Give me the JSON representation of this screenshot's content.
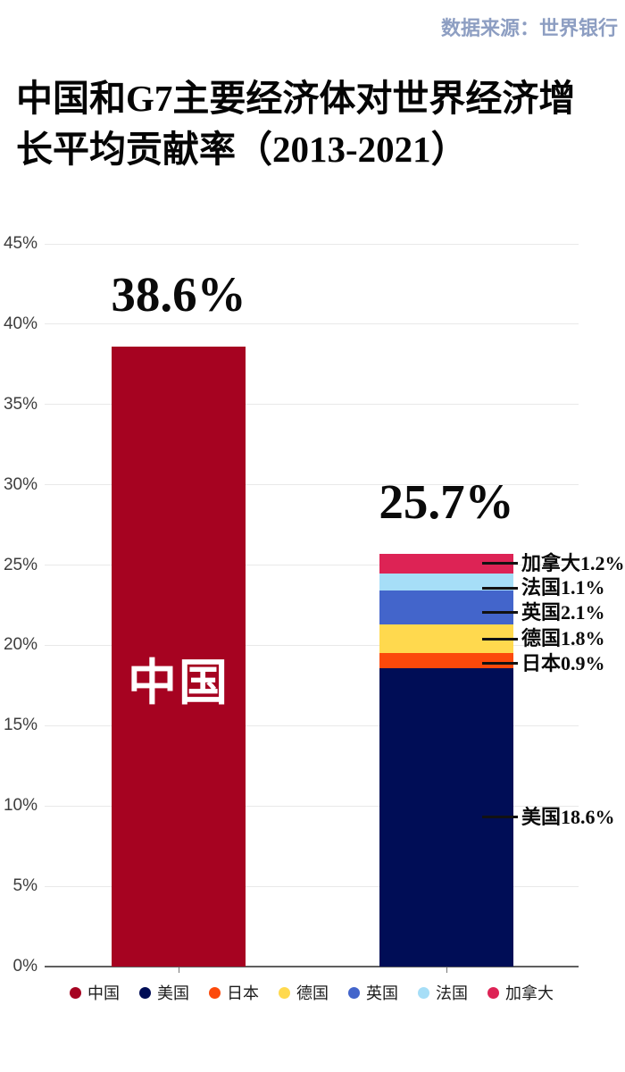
{
  "chart_data": {
    "type": "bar-stacked",
    "title": "中国和G7主要经济体对世界经济增长平均贡献率（2013-2021）",
    "source": "数据来源：世界银行",
    "ylim": [
      0,
      45
    ],
    "ytick_step": 5,
    "ytick_suffix": "%",
    "grid": true,
    "legend_position": "bottom",
    "bars": [
      {
        "name": "中国",
        "total": 38.6,
        "total_label": "38.6%",
        "inner_label": "中国",
        "segments": [
          {
            "name": "中国",
            "value": 38.6,
            "color": "#a60321",
            "annotation": ""
          }
        ]
      },
      {
        "name": "G7",
        "total": 25.7,
        "total_label": "25.7%",
        "inner_label": "",
        "segments": [
          {
            "name": "美国",
            "value": 18.6,
            "color": "#000d56",
            "annotation": "美国18.6%"
          },
          {
            "name": "日本",
            "value": 0.9,
            "color": "#fc490b",
            "annotation": "日本0.9%"
          },
          {
            "name": "德国",
            "value": 1.8,
            "color": "#ffd94e",
            "annotation": "德国1.8%"
          },
          {
            "name": "英国",
            "value": 2.1,
            "color": "#4365cb",
            "annotation": "英国2.1%"
          },
          {
            "name": "法国",
            "value": 1.1,
            "color": "#a6def7",
            "annotation": "法国1.1%"
          },
          {
            "name": "加拿大",
            "value": 1.2,
            "color": "#dd2355",
            "annotation": "加拿大1.2%"
          }
        ]
      }
    ],
    "legend": [
      {
        "label": "中国",
        "color": "#a60321"
      },
      {
        "label": "美国",
        "color": "#000d56"
      },
      {
        "label": "日本",
        "color": "#fc490b"
      },
      {
        "label": "德国",
        "color": "#ffd94e"
      },
      {
        "label": "英国",
        "color": "#4365cb"
      },
      {
        "label": "法国",
        "color": "#a6def7"
      },
      {
        "label": "加拿大",
        "color": "#dd2355"
      }
    ]
  }
}
